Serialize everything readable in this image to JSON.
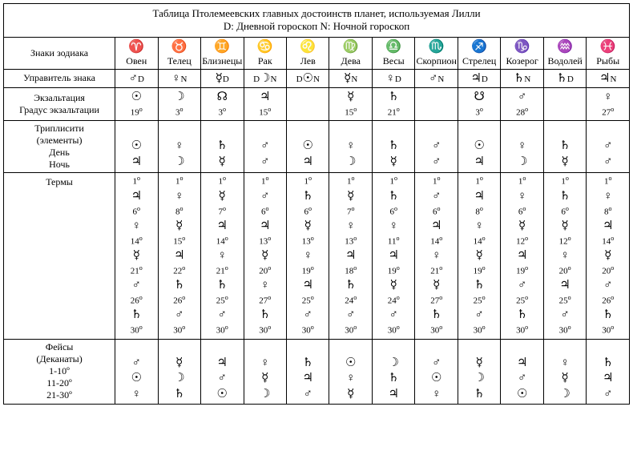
{
  "title": "Таблица Птолемеевских главных достоинств планет, используемая Лилли",
  "subtitle": "D: Дневной гороскоп  N: Ночной гороскоп",
  "row_labels": {
    "signs": "Знаки зодиака",
    "ruler": "Управитель знака",
    "exalt1": "Экзальтация",
    "exalt2": "Градус экзальтации",
    "trip1": "Триплисити",
    "trip2": "(элементы)",
    "trip3": "День",
    "trip4": "Ночь",
    "terms": "Термы",
    "faces1": "Фейсы",
    "faces2": "(Деканаты)",
    "faces3": "1-10º",
    "faces4": "11-20º",
    "faces5": "21-30º"
  },
  "signs": [
    {
      "sym": "♈",
      "name": "Овен"
    },
    {
      "sym": "♉",
      "name": "Телец"
    },
    {
      "sym": "♊",
      "name": "Близнецы"
    },
    {
      "sym": "♋",
      "name": "Рак"
    },
    {
      "sym": "♌",
      "name": "Лев"
    },
    {
      "sym": "♍",
      "name": "Дева"
    },
    {
      "sym": "♎",
      "name": "Весы"
    },
    {
      "sym": "♏",
      "name": "Скорпион"
    },
    {
      "sym": "♐",
      "name": "Стрелец"
    },
    {
      "sym": "♑",
      "name": "Козерог"
    },
    {
      "sym": "♒",
      "name": "Водолей"
    },
    {
      "sym": "♓",
      "name": "Рыбы"
    }
  ],
  "rulers": [
    [
      "♂",
      "D"
    ],
    [
      "♀",
      "N"
    ],
    [
      "☿",
      "D"
    ],
    [
      "D",
      "☽",
      "N"
    ],
    [
      "D",
      "☉",
      "N"
    ],
    [
      "☿",
      "N"
    ],
    [
      "♀",
      "D"
    ],
    [
      "♂",
      "N"
    ],
    [
      "♃",
      "D"
    ],
    [
      "♄",
      "N"
    ],
    [
      "♄",
      "D"
    ],
    [
      "♃",
      "N"
    ]
  ],
  "exalt": [
    {
      "p": "☉",
      "d": "19º"
    },
    {
      "p": "☽",
      "d": "3º"
    },
    {
      "p": "☊",
      "d": "3º"
    },
    {
      "p": "♃",
      "d": "15º"
    },
    null,
    {
      "p": "☿",
      "d": "15º"
    },
    {
      "p": "♄",
      "d": "21º"
    },
    null,
    {
      "p": "☋",
      "d": "3º"
    },
    {
      "p": "♂",
      "d": "28º"
    },
    null,
    {
      "p": "♀",
      "d": "27º"
    }
  ],
  "trip": [
    {
      "day": "☉",
      "night": "♃"
    },
    {
      "day": "♀",
      "night": "☽"
    },
    {
      "day": "♄",
      "night": "☿"
    },
    {
      "day": "♂",
      "night": "♂"
    },
    {
      "day": "☉",
      "night": "♃"
    },
    {
      "day": "♀",
      "night": "☽"
    },
    {
      "day": "♄",
      "night": "☿"
    },
    {
      "day": "♂",
      "night": "♂"
    },
    {
      "day": "☉",
      "night": "♃"
    },
    {
      "day": "♀",
      "night": "☽"
    },
    {
      "day": "♄",
      "night": "☿"
    },
    {
      "day": "♂",
      "night": "♂"
    }
  ],
  "terms": [
    [
      [
        "1º",
        "♃"
      ],
      [
        "6º",
        "♀"
      ],
      [
        "14º",
        "☿"
      ],
      [
        "21º",
        "♂"
      ],
      [
        "26º",
        "♄"
      ],
      [
        "30º",
        ""
      ]
    ],
    [
      [
        "1º",
        "♀"
      ],
      [
        "8º",
        "☿"
      ],
      [
        "15º",
        "♃"
      ],
      [
        "22º",
        "♄"
      ],
      [
        "26º",
        "♂"
      ],
      [
        "30º",
        ""
      ]
    ],
    [
      [
        "1º",
        "☿"
      ],
      [
        "7º",
        "♃"
      ],
      [
        "14º",
        "♀"
      ],
      [
        "21º",
        "♄"
      ],
      [
        "25º",
        "♂"
      ],
      [
        "30º",
        ""
      ]
    ],
    [
      [
        "1º",
        "♂"
      ],
      [
        "6º",
        "♃"
      ],
      [
        "13º",
        "☿"
      ],
      [
        "20º",
        "♀"
      ],
      [
        "27º",
        "♄"
      ],
      [
        "30º",
        ""
      ]
    ],
    [
      [
        "1º",
        "♄"
      ],
      [
        "6º",
        "☿"
      ],
      [
        "13º",
        "♀"
      ],
      [
        "19º",
        "♃"
      ],
      [
        "25º",
        "♂"
      ],
      [
        "30º",
        ""
      ]
    ],
    [
      [
        "1º",
        "☿"
      ],
      [
        "7º",
        "♀"
      ],
      [
        "13º",
        "♃"
      ],
      [
        "18º",
        "♄"
      ],
      [
        "24º",
        "♂"
      ],
      [
        "30º",
        ""
      ]
    ],
    [
      [
        "1º",
        "♄"
      ],
      [
        "6º",
        "♀"
      ],
      [
        "11º",
        "♃"
      ],
      [
        "19º",
        "☿"
      ],
      [
        "24º",
        "♂"
      ],
      [
        "30º",
        ""
      ]
    ],
    [
      [
        "1º",
        "♂"
      ],
      [
        "6º",
        "♃"
      ],
      [
        "14º",
        "♀"
      ],
      [
        "21º",
        "☿"
      ],
      [
        "27º",
        "♄"
      ],
      [
        "30º",
        ""
      ]
    ],
    [
      [
        "1º",
        "♃"
      ],
      [
        "8º",
        "♀"
      ],
      [
        "14º",
        "☿"
      ],
      [
        "19º",
        "♄"
      ],
      [
        "25º",
        "♂"
      ],
      [
        "30º",
        ""
      ]
    ],
    [
      [
        "1º",
        "♀"
      ],
      [
        "6º",
        "☿"
      ],
      [
        "12º",
        "♃"
      ],
      [
        "19º",
        "♂"
      ],
      [
        "25º",
        "♄"
      ],
      [
        "30º",
        ""
      ]
    ],
    [
      [
        "1º",
        "♄"
      ],
      [
        "6º",
        "☿"
      ],
      [
        "12º",
        "♀"
      ],
      [
        "20º",
        "♃"
      ],
      [
        "25º",
        "♂"
      ],
      [
        "30º",
        ""
      ]
    ],
    [
      [
        "1º",
        "♀"
      ],
      [
        "8º",
        "♃"
      ],
      [
        "14º",
        "☿"
      ],
      [
        "20º",
        "♂"
      ],
      [
        "26º",
        "♄"
      ],
      [
        "30º",
        ""
      ]
    ]
  ],
  "faces": [
    [
      "♂",
      "☉",
      "♀"
    ],
    [
      "☿",
      "☽",
      "♄"
    ],
    [
      "♃",
      "♂",
      "☉"
    ],
    [
      "♀",
      "☿",
      "☽"
    ],
    [
      "♄",
      "♃",
      "♂"
    ],
    [
      "☉",
      "♀",
      "☿"
    ],
    [
      "☽",
      "♄",
      "♃"
    ],
    [
      "♂",
      "☉",
      "♀"
    ],
    [
      "☿",
      "☽",
      "♄"
    ],
    [
      "♃",
      "♂",
      "☉"
    ],
    [
      "♀",
      "☿",
      "☽"
    ],
    [
      "♄",
      "♃",
      "♂"
    ]
  ]
}
